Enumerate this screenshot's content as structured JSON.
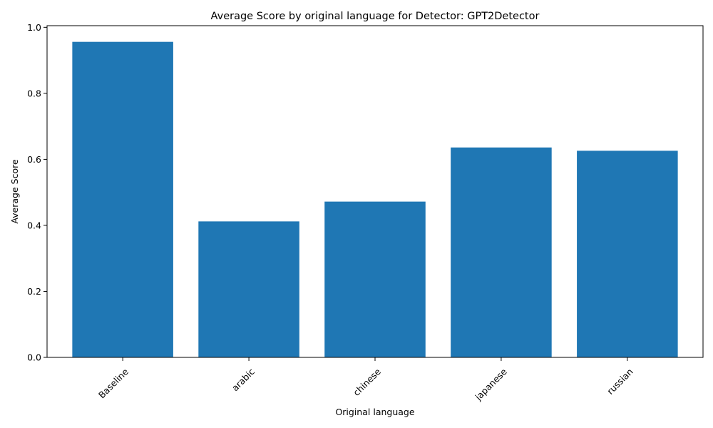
{
  "chart_data": {
    "type": "bar",
    "title": "Average Score by original language for Detector: GPT2Detector",
    "xlabel": "Original language",
    "ylabel": "Average Score",
    "categories": [
      "Baseline",
      "arabic",
      "chinese",
      "japanese",
      "russian"
    ],
    "values": [
      0.956,
      0.412,
      0.472,
      0.636,
      0.626
    ],
    "ylim": [
      0,
      1.005
    ],
    "yticks": [
      0.0,
      0.2,
      0.4,
      0.6,
      0.8,
      1.0
    ],
    "ytick_labels": [
      "0.0",
      "0.2",
      "0.4",
      "0.6",
      "0.8",
      "1.0"
    ],
    "bar_color": "#1f77b4",
    "grid": false,
    "legend": "none"
  }
}
